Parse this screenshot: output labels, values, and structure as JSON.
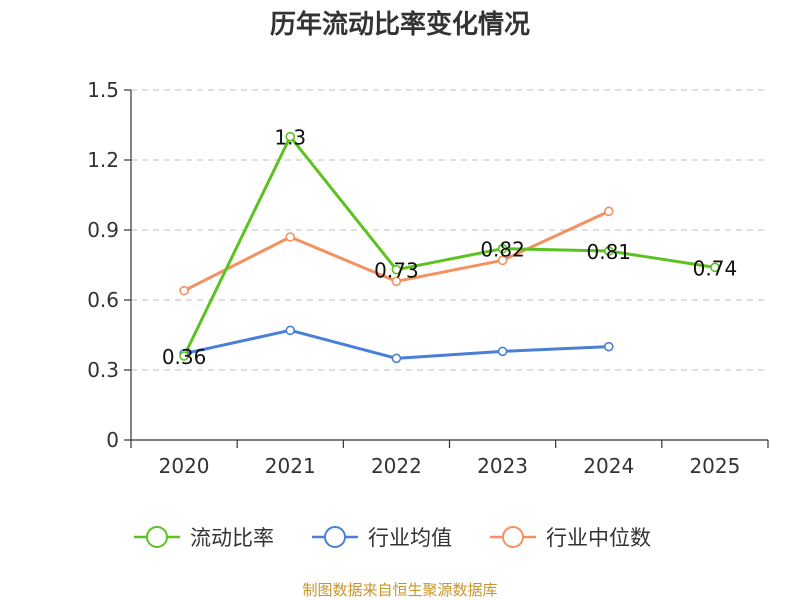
{
  "colors": {
    "current_ratio": "#5cc221",
    "industry_avg": "#4a7fd8",
    "industry_median": "#f59060",
    "grid": "#cccccc",
    "axis": "#333333",
    "source": "#c8952a"
  },
  "source_text": "制图数据来自恒生聚源数据库",
  "chart_data": {
    "type": "line",
    "title": "历年流动比率变化情况",
    "categories": [
      "2020",
      "2021",
      "2022",
      "2023",
      "2024",
      "2025"
    ],
    "ylim": [
      0,
      1.5
    ],
    "yticks": [
      0,
      0.3,
      0.6,
      0.9,
      1.2,
      1.5
    ],
    "ytick_labels": [
      "0",
      "0.3",
      "0.6",
      "0.9",
      "1.2",
      "1.5"
    ],
    "grid": true,
    "legend_position": "bottom",
    "series": [
      {
        "name": "流动比率",
        "color_key": "current_ratio",
        "values": [
          0.36,
          1.3,
          0.73,
          0.82,
          0.81,
          0.74
        ],
        "data_labels": [
          "0.36",
          "1.3",
          "0.73",
          "0.82",
          "0.81",
          "0.74"
        ]
      },
      {
        "name": "行业均值",
        "color_key": "industry_avg",
        "values": [
          0.37,
          0.47,
          0.35,
          0.38,
          0.4,
          null
        ]
      },
      {
        "name": "行业中位数",
        "color_key": "industry_median",
        "values": [
          0.64,
          0.87,
          0.68,
          0.77,
          0.98,
          null
        ]
      }
    ]
  }
}
